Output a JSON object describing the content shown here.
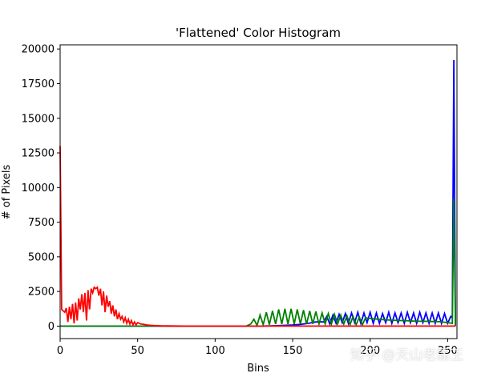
{
  "watermark": "知乎 @天山老霸王",
  "chart_data": {
    "type": "line",
    "title": "'Flattened' Color Histogram",
    "xlabel": "Bins",
    "ylabel": "# of Pixels",
    "xlim": [
      0,
      256
    ],
    "ylim": [
      -900,
      20300
    ],
    "xticks": [
      0,
      50,
      100,
      150,
      200,
      250
    ],
    "yticks": [
      0,
      2500,
      5000,
      7500,
      10000,
      12500,
      15000,
      17500,
      20000
    ],
    "grid": false,
    "legend": "none",
    "series": [
      {
        "color": "#0000ff",
        "x": [
          0,
          1,
          2,
          120,
          130,
          140,
          150,
          155,
          160,
          165,
          170,
          172,
          174,
          176,
          178,
          180,
          182,
          184,
          186,
          188,
          190,
          192,
          194,
          196,
          198,
          200,
          202,
          204,
          206,
          208,
          210,
          212,
          214,
          216,
          218,
          220,
          222,
          224,
          226,
          228,
          230,
          232,
          234,
          236,
          238,
          240,
          242,
          244,
          246,
          248,
          250,
          252,
          253,
          254,
          255
        ],
        "values": [
          0,
          0,
          0,
          0,
          0,
          30,
          80,
          120,
          200,
          300,
          300,
          700,
          150,
          800,
          200,
          850,
          250,
          900,
          200,
          950,
          250,
          1000,
          200,
          950,
          250,
          1000,
          200,
          950,
          200,
          900,
          250,
          1000,
          200,
          950,
          250,
          950,
          200,
          1000,
          250,
          950,
          200,
          1000,
          250,
          950,
          200,
          950,
          200,
          950,
          200,
          900,
          200,
          700,
          600,
          19200,
          0
        ]
      },
      {
        "color": "#008000",
        "x": [
          0,
          1,
          2,
          110,
          120,
          123,
          125,
          127,
          129,
          131,
          133,
          135,
          137,
          139,
          141,
          143,
          145,
          147,
          149,
          151,
          153,
          155,
          157,
          159,
          161,
          163,
          165,
          167,
          169,
          171,
          173,
          175,
          177,
          179,
          181,
          183,
          185,
          187,
          189,
          191,
          193,
          195,
          197,
          200,
          205,
          210,
          215,
          220,
          225,
          230,
          235,
          240,
          245,
          250,
          253,
          254,
          255
        ],
        "values": [
          20,
          0,
          0,
          0,
          0,
          150,
          500,
          50,
          800,
          100,
          1000,
          100,
          1100,
          150,
          1200,
          150,
          1250,
          150,
          1250,
          150,
          1200,
          150,
          1150,
          150,
          1100,
          150,
          1050,
          150,
          950,
          150,
          900,
          150,
          850,
          150,
          800,
          150,
          750,
          100,
          700,
          100,
          650,
          100,
          600,
          550,
          500,
          450,
          420,
          400,
          380,
          350,
          350,
          330,
          320,
          250,
          200,
          9200,
          0
        ]
      },
      {
        "color": "#ff0000",
        "x": [
          0,
          1,
          2,
          3,
          4,
          5,
          6,
          7,
          8,
          9,
          10,
          11,
          12,
          13,
          14,
          15,
          16,
          17,
          18,
          19,
          20,
          21,
          22,
          23,
          24,
          25,
          26,
          27,
          28,
          29,
          30,
          31,
          32,
          33,
          34,
          35,
          36,
          37,
          38,
          39,
          40,
          41,
          42,
          43,
          44,
          45,
          46,
          47,
          48,
          49,
          50,
          52,
          54,
          56,
          58,
          60,
          63,
          66,
          70,
          75,
          80,
          90,
          100,
          110,
          120,
          130,
          150,
          180,
          200,
          220,
          240,
          255
        ],
        "values": [
          13000,
          1200,
          1100,
          1000,
          1300,
          300,
          1400,
          500,
          1600,
          200,
          1700,
          400,
          2000,
          1200,
          2300,
          1000,
          2400,
          400,
          2600,
          1200,
          2700,
          2400,
          2800,
          2700,
          2800,
          2200,
          2700,
          1500,
          2500,
          1000,
          2200,
          1400,
          1800,
          900,
          1500,
          700,
          1200,
          500,
          900,
          500,
          700,
          300,
          600,
          200,
          500,
          150,
          400,
          100,
          300,
          80,
          250,
          150,
          120,
          80,
          60,
          40,
          30,
          20,
          10,
          5,
          0,
          0,
          0,
          0,
          0,
          0,
          0,
          0,
          0,
          0,
          0,
          0
        ]
      }
    ]
  }
}
